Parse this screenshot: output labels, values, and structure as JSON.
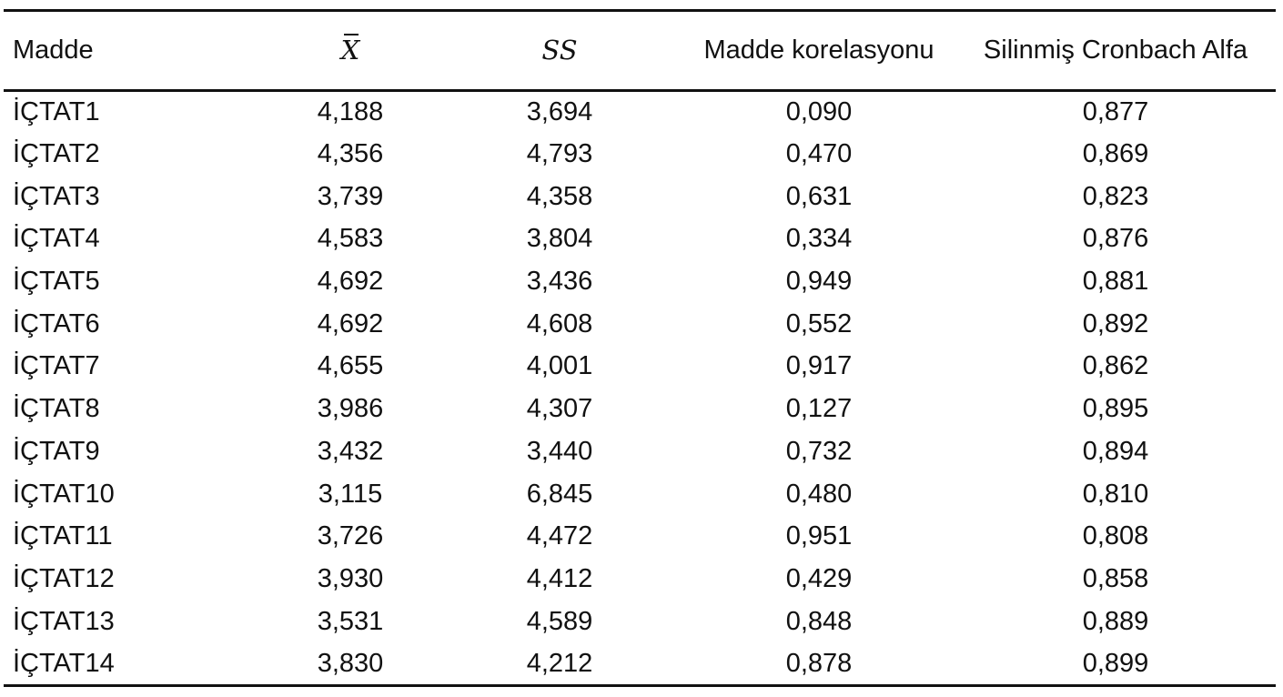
{
  "table": {
    "headers": {
      "item": "Madde",
      "mean": "X",
      "sd": "SS",
      "item_correlation": "Madde korelasyonu",
      "alpha_if_deleted": "Silinmiş Cronbach Alfa"
    },
    "rows": [
      {
        "item": "İÇTAT1",
        "mean": "4,188",
        "sd": "3,694",
        "corr": "0,090",
        "alpha": "0,877"
      },
      {
        "item": "İÇTAT2",
        "mean": "4,356",
        "sd": "4,793",
        "corr": "0,470",
        "alpha": "0,869"
      },
      {
        "item": "İÇTAT3",
        "mean": "3,739",
        "sd": "4,358",
        "corr": "0,631",
        "alpha": "0,823"
      },
      {
        "item": "İÇTAT4",
        "mean": "4,583",
        "sd": "3,804",
        "corr": "0,334",
        "alpha": "0,876"
      },
      {
        "item": "İÇTAT5",
        "mean": "4,692",
        "sd": "3,436",
        "corr": "0,949",
        "alpha": "0,881"
      },
      {
        "item": "İÇTAT6",
        "mean": "4,692",
        "sd": "4,608",
        "corr": "0,552",
        "alpha": "0,892"
      },
      {
        "item": "İÇTAT7",
        "mean": "4,655",
        "sd": "4,001",
        "corr": "0,917",
        "alpha": "0,862"
      },
      {
        "item": "İÇTAT8",
        "mean": "3,986",
        "sd": "4,307",
        "corr": "0,127",
        "alpha": "0,895"
      },
      {
        "item": "İÇTAT9",
        "mean": "3,432",
        "sd": "3,440",
        "corr": "0,732",
        "alpha": "0,894"
      },
      {
        "item": "İÇTAT10",
        "mean": "3,115",
        "sd": "6,845",
        "corr": "0,480",
        "alpha": "0,810"
      },
      {
        "item": "İÇTAT11",
        "mean": "3,726",
        "sd": "4,472",
        "corr": "0,951",
        "alpha": "0,808"
      },
      {
        "item": "İÇTAT12",
        "mean": "3,930",
        "sd": "4,412",
        "corr": "0,429",
        "alpha": "0,858"
      },
      {
        "item": "İÇTAT13",
        "mean": "3,531",
        "sd": "4,589",
        "corr": "0,848",
        "alpha": "0,889"
      },
      {
        "item": "İÇTAT14",
        "mean": "3,830",
        "sd": "4,212",
        "corr": "0,878",
        "alpha": "0,899"
      }
    ]
  }
}
